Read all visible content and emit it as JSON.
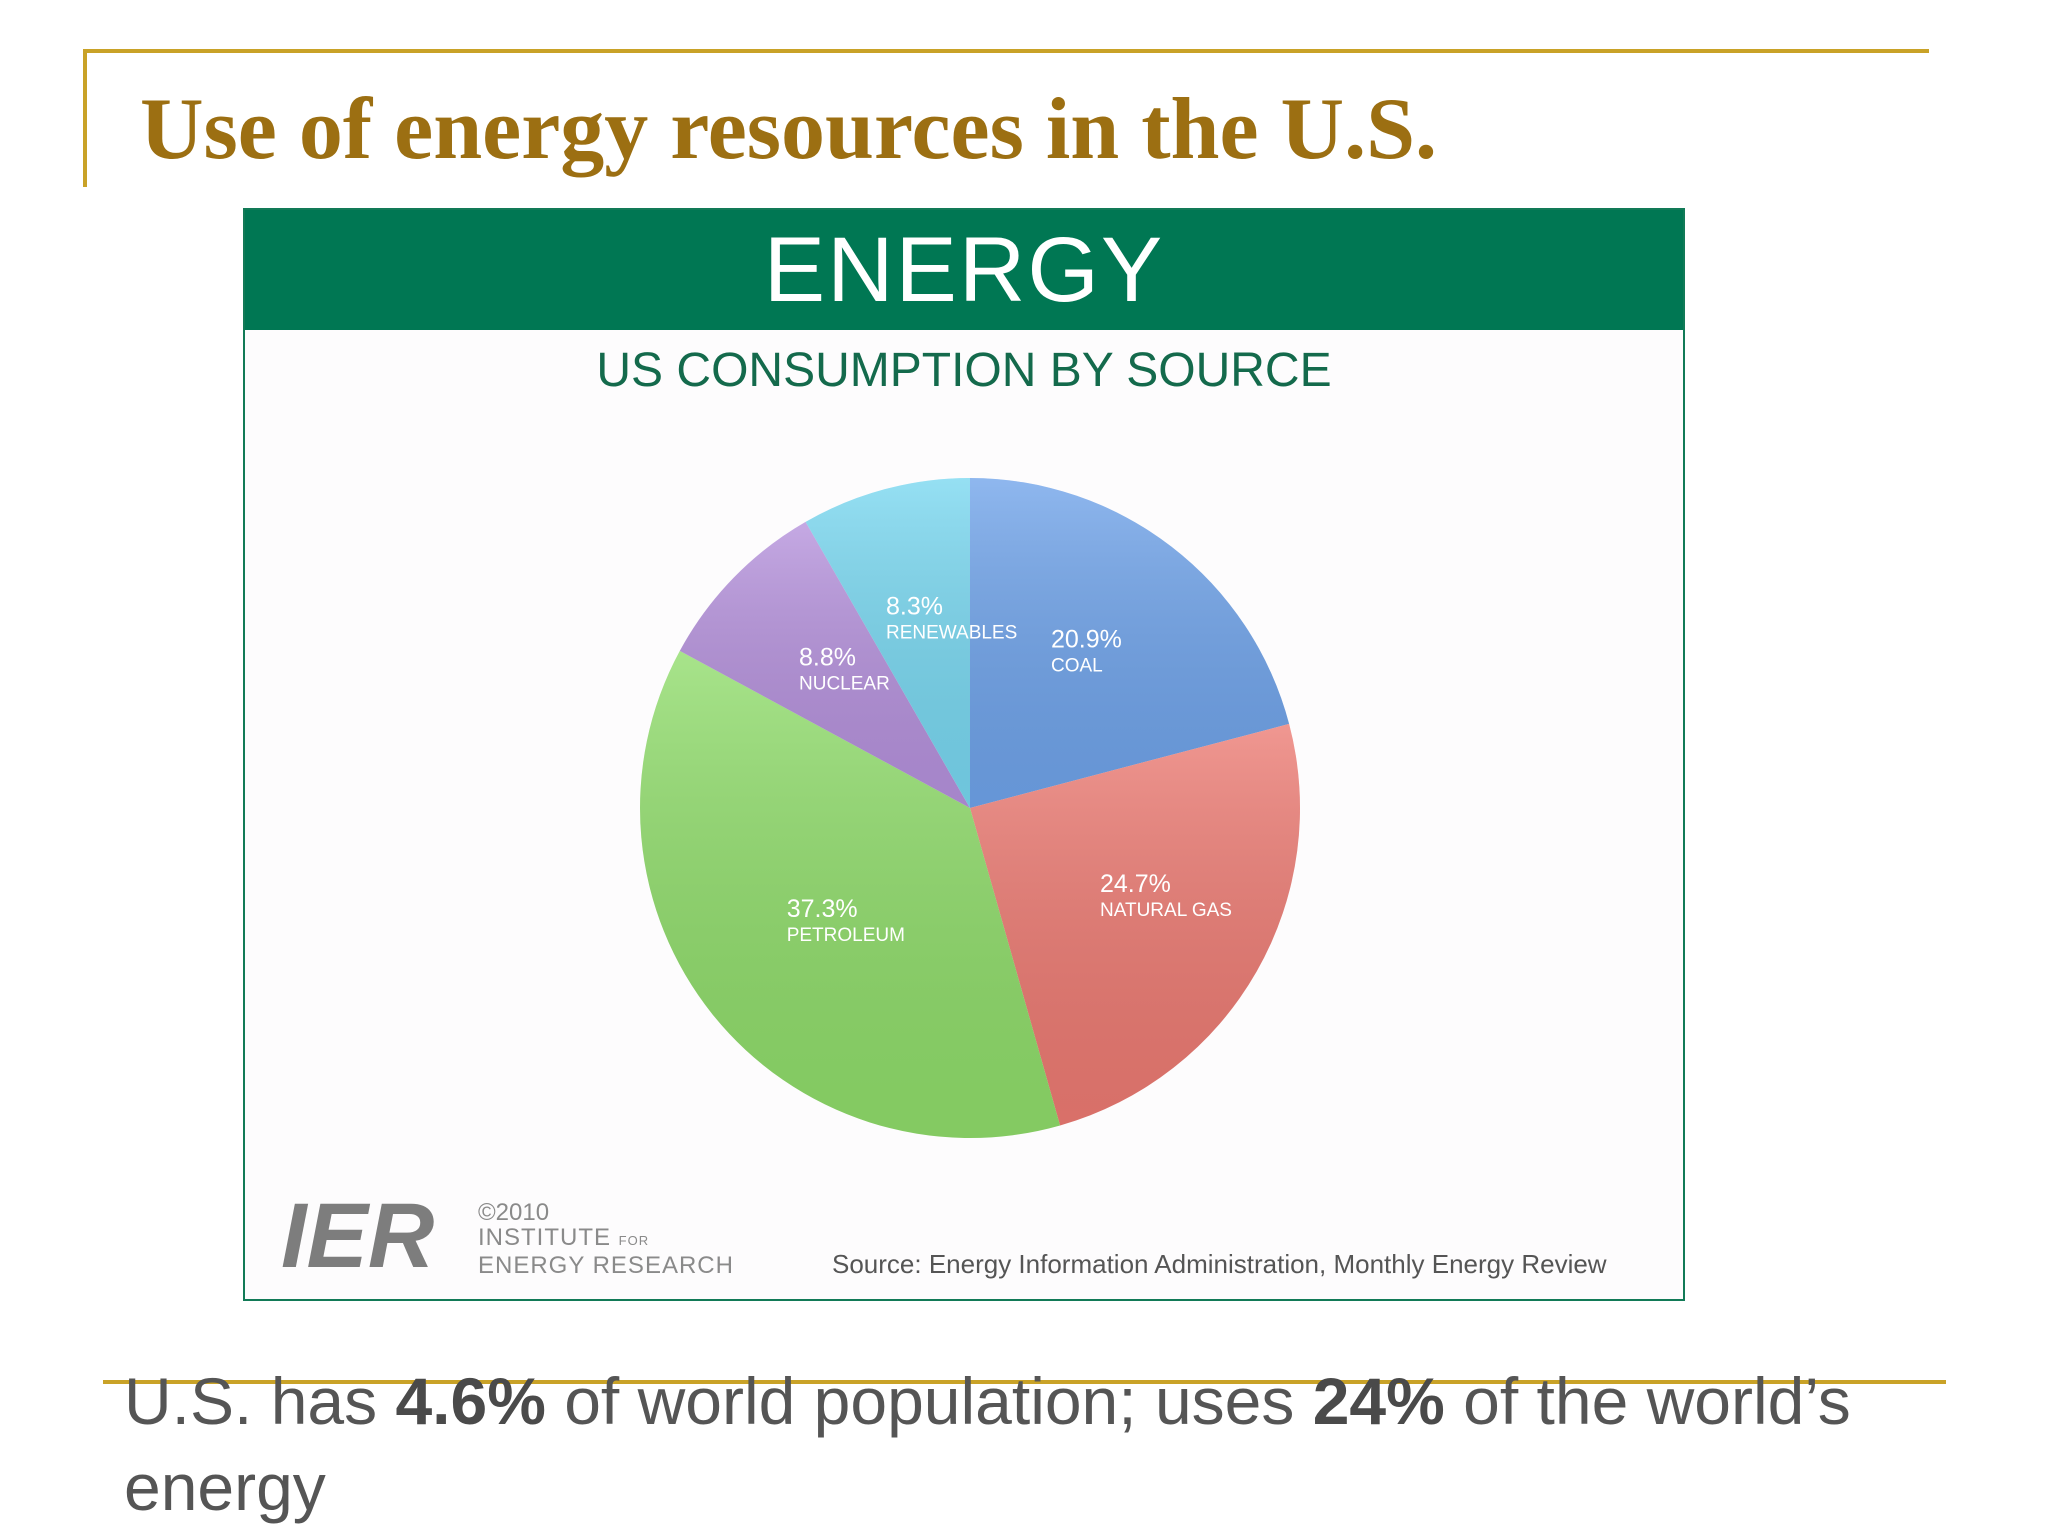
{
  "slide": {
    "title": "Use of energy resources in the U.S."
  },
  "infographic": {
    "banner": "ENERGY",
    "subtitle": "US CONSUMPTION BY SOURCE",
    "copyright_year": "©2010",
    "org_line1": "INSTITUTE",
    "org_for": "FOR",
    "org_line2": "ENERGY RESEARCH",
    "logo_text": "IER",
    "source": "Source: Energy Information Administration, Monthly Energy Review"
  },
  "chart_data": {
    "type": "pie",
    "title": "ENERGY",
    "subtitle": "US CONSUMPTION BY SOURCE",
    "slices": [
      {
        "name": "COAL",
        "label": "20.9%",
        "value": 20.9,
        "color": "#6fa3ea"
      },
      {
        "name": "NATURAL GAS",
        "label": "24.7%",
        "value": 24.7,
        "color": "#ec7a72"
      },
      {
        "name": "PETROLEUM",
        "label": "37.3%",
        "value": 37.3,
        "color": "#8fdc6a"
      },
      {
        "name": "NUCLEAR",
        "label": "8.8%",
        "value": 8.8,
        "color": "#b591dc"
      },
      {
        "name": "RENEWABLES",
        "label": "8.3%",
        "value": 8.3,
        "color": "#78d7f0"
      }
    ],
    "start": "12 o'clock",
    "direction": "clockwise"
  },
  "bullet": {
    "pre": "U.S. has ",
    "bold1": "4.6%",
    "mid": " of world population; uses ",
    "bold2": "24%",
    "post": " of the world’s energy"
  },
  "colors": {
    "gold_rule": "#c9a227",
    "title": "#9c6f12",
    "banner_green": "#007753",
    "subtitle_green": "#146a4c"
  }
}
